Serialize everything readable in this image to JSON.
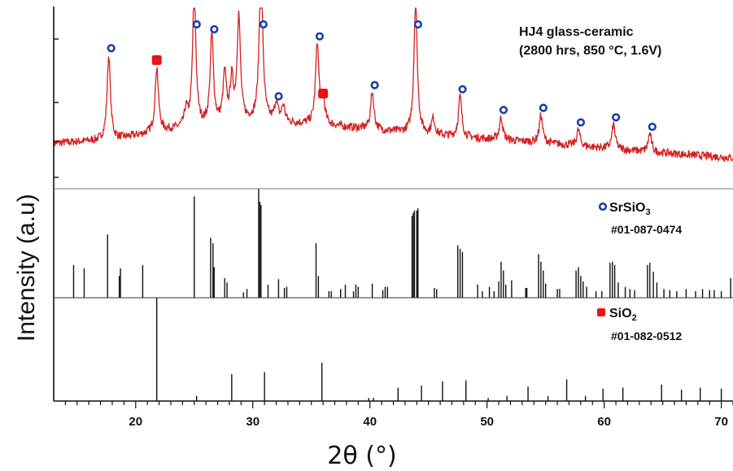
{
  "chart_data": {
    "type": "line",
    "xlabel": "2θ (°)",
    "ylabel": "Intensity (a.u)",
    "xlim": [
      13,
      71
    ],
    "xticks": [
      20,
      30,
      40,
      50,
      60,
      70
    ],
    "xtick_labels": [
      "20",
      "30",
      "40",
      "50",
      "60",
      "70"
    ],
    "grid": false,
    "colors": {
      "pattern": "#d42020",
      "marker_sio2": "#e8141a",
      "marker_srsio3": "#1a3fa8",
      "reference": "#111111"
    },
    "sample": {
      "title": "HJ4 glass-ceramic",
      "condition": "(2800 hrs, 850 °C, 1.6V)",
      "baseline": [
        [
          13,
          0.17
        ],
        [
          18,
          0.19
        ],
        [
          23,
          0.25
        ],
        [
          30,
          0.3
        ],
        [
          36,
          0.28
        ],
        [
          45,
          0.22
        ],
        [
          55,
          0.17
        ],
        [
          63,
          0.12
        ],
        [
          71,
          0.08
        ]
      ],
      "peaks": [
        {
          "x": 17.7,
          "h": 0.52,
          "phase": "SrSiO3"
        },
        {
          "x": 21.8,
          "h": 0.4,
          "phase": "SiO2"
        },
        {
          "x": 24.3,
          "h": 0.1,
          "phase": ""
        },
        {
          "x": 25.0,
          "h": 0.83,
          "phase": "SrSiO3"
        },
        {
          "x": 26.5,
          "h": 0.55,
          "phase": "SrSiO3"
        },
        {
          "x": 27.6,
          "h": 0.3,
          "phase": ""
        },
        {
          "x": 28.2,
          "h": 0.25,
          "phase": ""
        },
        {
          "x": 28.8,
          "h": 0.65,
          "phase": ""
        },
        {
          "x": 30.7,
          "h": 1.02,
          "phase": "SrSiO3"
        },
        {
          "x": 32.0,
          "h": 0.12,
          "phase": "SrSiO3"
        },
        {
          "x": 32.6,
          "h": 0.1,
          "phase": ""
        },
        {
          "x": 35.5,
          "h": 0.5,
          "phase": "SrSiO3"
        },
        {
          "x": 36.0,
          "h": 0.15,
          "phase": "SiO2"
        },
        {
          "x": 40.2,
          "h": 0.23,
          "phase": "SrSiO3"
        },
        {
          "x": 43.9,
          "h": 0.82,
          "phase": "SrSiO3"
        },
        {
          "x": 45.4,
          "h": 0.1,
          "phase": ""
        },
        {
          "x": 47.7,
          "h": 0.25,
          "phase": "SrSiO3"
        },
        {
          "x": 51.2,
          "h": 0.14,
          "phase": "SrSiO3"
        },
        {
          "x": 54.6,
          "h": 0.17,
          "phase": "SrSiO3"
        },
        {
          "x": 57.8,
          "h": 0.1,
          "phase": "SrSiO3"
        },
        {
          "x": 60.8,
          "h": 0.15,
          "phase": "SrSiO3"
        },
        {
          "x": 63.9,
          "h": 0.11,
          "phase": "SrSiO3"
        }
      ]
    },
    "reference_srsio3": {
      "symbol": "o",
      "label_prefix": "SrSiO",
      "label_sub": "3",
      "card": "#01-087-0474",
      "lines": [
        [
          14.7,
          0.3
        ],
        [
          15.6,
          0.27
        ],
        [
          17.6,
          0.58
        ],
        [
          18.6,
          0.2
        ],
        [
          18.7,
          0.27
        ],
        [
          20.6,
          0.3
        ],
        [
          25.0,
          0.93
        ],
        [
          26.4,
          0.55
        ],
        [
          26.6,
          0.5
        ],
        [
          26.7,
          0.28
        ],
        [
          27.6,
          0.18
        ],
        [
          27.8,
          0.14
        ],
        [
          29.2,
          0.05
        ],
        [
          29.5,
          0.08
        ],
        [
          30.5,
          1.0
        ],
        [
          30.6,
          0.88
        ],
        [
          30.7,
          0.85
        ],
        [
          31.3,
          0.12
        ],
        [
          32.2,
          0.17
        ],
        [
          32.7,
          0.09
        ],
        [
          32.9,
          0.1
        ],
        [
          35.4,
          0.5
        ],
        [
          35.6,
          0.2
        ],
        [
          36.5,
          0.06
        ],
        [
          36.7,
          0.06
        ],
        [
          37.5,
          0.08
        ],
        [
          37.9,
          0.12
        ],
        [
          38.6,
          0.06
        ],
        [
          38.8,
          0.12
        ],
        [
          39.0,
          0.1
        ],
        [
          40.2,
          0.13
        ],
        [
          41.1,
          0.07
        ],
        [
          41.3,
          0.1
        ],
        [
          41.5,
          0.1
        ],
        [
          43.6,
          0.75
        ],
        [
          43.7,
          0.78
        ],
        [
          43.8,
          0.8
        ],
        [
          44.0,
          0.8
        ],
        [
          44.1,
          0.82
        ],
        [
          45.5,
          0.09
        ],
        [
          45.7,
          0.08
        ],
        [
          47.5,
          0.48
        ],
        [
          47.7,
          0.45
        ],
        [
          47.9,
          0.42
        ],
        [
          49.2,
          0.12
        ],
        [
          49.6,
          0.06
        ],
        [
          50.2,
          0.1
        ],
        [
          50.6,
          0.06
        ],
        [
          51.0,
          0.15
        ],
        [
          51.2,
          0.33
        ],
        [
          51.4,
          0.25
        ],
        [
          51.6,
          0.12
        ],
        [
          52.1,
          0.16
        ],
        [
          53.3,
          0.09
        ],
        [
          53.4,
          0.09
        ],
        [
          54.4,
          0.4
        ],
        [
          54.6,
          0.33
        ],
        [
          54.8,
          0.25
        ],
        [
          55.0,
          0.13
        ],
        [
          56.0,
          0.08
        ],
        [
          56.2,
          0.08
        ],
        [
          57.6,
          0.25
        ],
        [
          57.8,
          0.28
        ],
        [
          58.0,
          0.2
        ],
        [
          58.2,
          0.15
        ],
        [
          58.5,
          0.1
        ],
        [
          59.3,
          0.06
        ],
        [
          59.8,
          0.06
        ],
        [
          60.5,
          0.32
        ],
        [
          60.7,
          0.33
        ],
        [
          60.9,
          0.3
        ],
        [
          61.2,
          0.14
        ],
        [
          61.8,
          0.1
        ],
        [
          62.2,
          0.08
        ],
        [
          62.6,
          0.07
        ],
        [
          63.7,
          0.3
        ],
        [
          63.9,
          0.32
        ],
        [
          64.2,
          0.24
        ],
        [
          64.5,
          0.14
        ],
        [
          65.1,
          0.08
        ],
        [
          65.6,
          0.07
        ],
        [
          66.2,
          0.06
        ],
        [
          67.0,
          0.08
        ],
        [
          67.8,
          0.06
        ],
        [
          68.4,
          0.08
        ],
        [
          69.0,
          0.07
        ],
        [
          69.4,
          0.07
        ],
        [
          70.0,
          0.06
        ],
        [
          70.8,
          0.18
        ]
      ]
    },
    "reference_sio2": {
      "symbol": "■",
      "label_prefix": "SiO",
      "label_sub": "2",
      "card": "#01-082-0512",
      "lines": [
        [
          21.8,
          1.0
        ],
        [
          25.2,
          0.05
        ],
        [
          28.2,
          0.26
        ],
        [
          31.0,
          0.28
        ],
        [
          35.9,
          0.37
        ],
        [
          39.9,
          0.03
        ],
        [
          40.3,
          0.03
        ],
        [
          42.4,
          0.13
        ],
        [
          44.4,
          0.15
        ],
        [
          46.2,
          0.19
        ],
        [
          48.2,
          0.2
        ],
        [
          50.1,
          0.03
        ],
        [
          51.7,
          0.05
        ],
        [
          53.5,
          0.14
        ],
        [
          55.2,
          0.05
        ],
        [
          56.8,
          0.21
        ],
        [
          58.4,
          0.05
        ],
        [
          59.9,
          0.12
        ],
        [
          61.6,
          0.13
        ],
        [
          64.9,
          0.16
        ],
        [
          66.6,
          0.11
        ],
        [
          68.2,
          0.13
        ],
        [
          70.0,
          0.12
        ]
      ]
    }
  }
}
